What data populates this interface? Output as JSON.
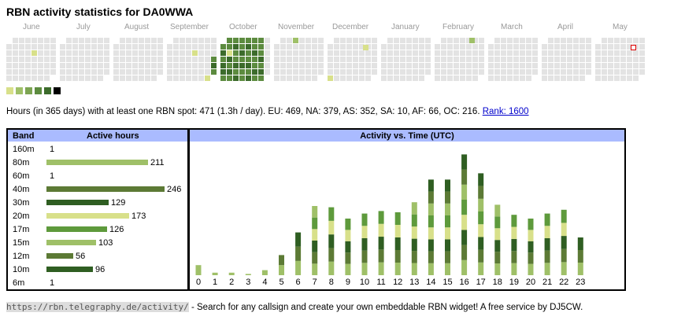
{
  "title": "RBN activity statistics for DA0WWA",
  "months": [
    "June",
    "July",
    "August",
    "September",
    "October",
    "November",
    "December",
    "January",
    "February",
    "March",
    "April",
    "May"
  ],
  "colors": {
    "empty": "#e3e3e3",
    "levels": [
      "#d8e08a",
      "#9fc068",
      "#7ca452",
      "#5c8b3f",
      "#3c6b2b",
      "#000000"
    ],
    "today_border": "#dd0000",
    "header_bg": "#aabbff",
    "link": "#0000cc"
  },
  "heatmap": {
    "empty_color": "#e3e3e3",
    "active_days": [
      {
        "week": 33,
        "day": 2,
        "level": 0
      },
      {
        "week": 30,
        "day": 6,
        "level": 0
      },
      {
        "week": 31,
        "day": 3,
        "level": 3
      },
      {
        "week": 31,
        "day": 4,
        "level": 4
      },
      {
        "week": 31,
        "day": 5,
        "level": 3
      },
      {
        "week": 31,
        "day": 6,
        "level": 4
      },
      {
        "week": 32,
        "day": 0,
        "level": 3
      },
      {
        "week": 32,
        "day": 1,
        "level": 3
      },
      {
        "week": 32,
        "day": 2,
        "level": 4
      },
      {
        "week": 32,
        "day": 3,
        "level": 3
      },
      {
        "week": 32,
        "day": 4,
        "level": 4
      },
      {
        "week": 32,
        "day": 5,
        "level": 4
      },
      {
        "week": 32,
        "day": 6,
        "level": 3
      },
      {
        "week": 33,
        "day": 0,
        "level": 3
      },
      {
        "week": 33,
        "day": 1,
        "level": 3
      },
      {
        "week": 33,
        "day": 3,
        "level": 4
      },
      {
        "week": 33,
        "day": 4,
        "level": 3
      },
      {
        "week": 33,
        "day": 5,
        "level": 4
      },
      {
        "week": 33,
        "day": 6,
        "level": 3
      },
      {
        "week": 34,
        "day": 0,
        "level": 3
      },
      {
        "week": 34,
        "day": 1,
        "level": 4
      },
      {
        "week": 34,
        "day": 2,
        "level": 3
      },
      {
        "week": 34,
        "day": 3,
        "level": 3
      },
      {
        "week": 34,
        "day": 4,
        "level": 4
      },
      {
        "week": 34,
        "day": 5,
        "level": 3
      },
      {
        "week": 34,
        "day": 6,
        "level": 4
      },
      {
        "week": 35,
        "day": 0,
        "level": 3
      },
      {
        "week": 35,
        "day": 1,
        "level": 3
      },
      {
        "week": 35,
        "day": 2,
        "level": 4
      },
      {
        "week": 35,
        "day": 3,
        "level": 3
      },
      {
        "week": 35,
        "day": 4,
        "level": 4
      },
      {
        "week": 35,
        "day": 5,
        "level": 3
      },
      {
        "week": 35,
        "day": 6,
        "level": 3
      },
      {
        "week": 36,
        "day": 0,
        "level": 3
      },
      {
        "week": 36,
        "day": 1,
        "level": 4
      },
      {
        "week": 36,
        "day": 2,
        "level": 3
      },
      {
        "week": 36,
        "day": 3,
        "level": 3
      },
      {
        "week": 36,
        "day": 4,
        "level": 4
      },
      {
        "week": 36,
        "day": 5,
        "level": 3
      },
      {
        "week": 36,
        "day": 6,
        "level": 4
      },
      {
        "week": 37,
        "day": 0,
        "level": 3
      },
      {
        "week": 37,
        "day": 1,
        "level": 3
      },
      {
        "week": 37,
        "day": 2,
        "level": 4
      },
      {
        "week": 37,
        "day": 3,
        "level": 3
      },
      {
        "week": 37,
        "day": 4,
        "level": 3
      },
      {
        "week": 37,
        "day": 5,
        "level": 4
      },
      {
        "week": 37,
        "day": 6,
        "level": 3
      },
      {
        "week": 38,
        "day": 0,
        "level": 3
      },
      {
        "week": 38,
        "day": 1,
        "level": 3
      },
      {
        "week": 38,
        "day": 2,
        "level": 3
      },
      {
        "week": 38,
        "day": 3,
        "level": 4
      },
      {
        "week": 38,
        "day": 4,
        "level": 3
      },
      {
        "week": 38,
        "day": 5,
        "level": 4
      },
      {
        "week": 38,
        "day": 6,
        "level": 3
      },
      {
        "week": 43,
        "day": 0,
        "level": 1
      },
      {
        "week": 28,
        "day": 2,
        "level": 0
      },
      {
        "week": 4,
        "day": 2,
        "level": 0
      }
    ]
  },
  "legend": {
    "levels": [
      "#d8e08a",
      "#9fc068",
      "#7ca452",
      "#5c8b3f",
      "#3c6b2b",
      "#000000"
    ]
  },
  "summary": {
    "text": "Hours (in 365 days) with at least one RBN spot: 471 (1.3h / day). EU: 469, NA: 379, AS: 352, SA: 10, AF: 66, OC: 216.",
    "rank": "Rank: 1600"
  },
  "band_table": {
    "col_band": "Band",
    "col_hours": "Active hours",
    "rows": [
      {
        "band": "160m",
        "hours": 1,
        "color": "#9fc068"
      },
      {
        "band": "80m",
        "hours": 211,
        "color": "#9fc068"
      },
      {
        "band": "60m",
        "hours": 1,
        "color": "#7ca452"
      },
      {
        "band": "40m",
        "hours": 246,
        "color": "#5c7a35"
      },
      {
        "band": "30m",
        "hours": 129,
        "color": "#2f5e22"
      },
      {
        "band": "20m",
        "hours": 173,
        "color": "#d8e08a"
      },
      {
        "band": "17m",
        "hours": 126,
        "color": "#5e9a3c"
      },
      {
        "band": "15m",
        "hours": 103,
        "color": "#9fc068"
      },
      {
        "band": "12m",
        "hours": 56,
        "color": "#5c7a35"
      },
      {
        "band": "10m",
        "hours": 96,
        "color": "#2f5e22"
      },
      {
        "band": "6m",
        "hours": 1,
        "color": "#5e9a3c"
      }
    ]
  },
  "time_chart": {
    "title": "Activity vs. Time (UTC)",
    "segment_colors": [
      "#9fc068",
      "#5c7a35",
      "#2f5e22",
      "#d8e08a",
      "#5e9a3c",
      "#9fc068",
      "#5c7a35",
      "#2f5e22"
    ]
  },
  "chart_data": {
    "type": "bar",
    "title": "Activity vs. Time (UTC)",
    "categories": [
      "0",
      "1",
      "2",
      "3",
      "4",
      "5",
      "6",
      "7",
      "8",
      "9",
      "10",
      "11",
      "12",
      "13",
      "14",
      "15",
      "16",
      "17",
      "18",
      "19",
      "20",
      "21",
      "22",
      "23"
    ],
    "values": [
      8,
      2,
      2,
      1,
      4,
      16,
      34,
      55,
      54,
      45,
      49,
      51,
      50,
      58,
      76,
      76,
      96,
      81,
      56,
      48,
      45,
      49,
      52,
      30
    ]
  },
  "footer": {
    "url": "https://rbn.telegraphy.de/activity/",
    "text": " - Search for any callsign and create your own embeddable RBN widget! A free service by DJ5CW."
  }
}
